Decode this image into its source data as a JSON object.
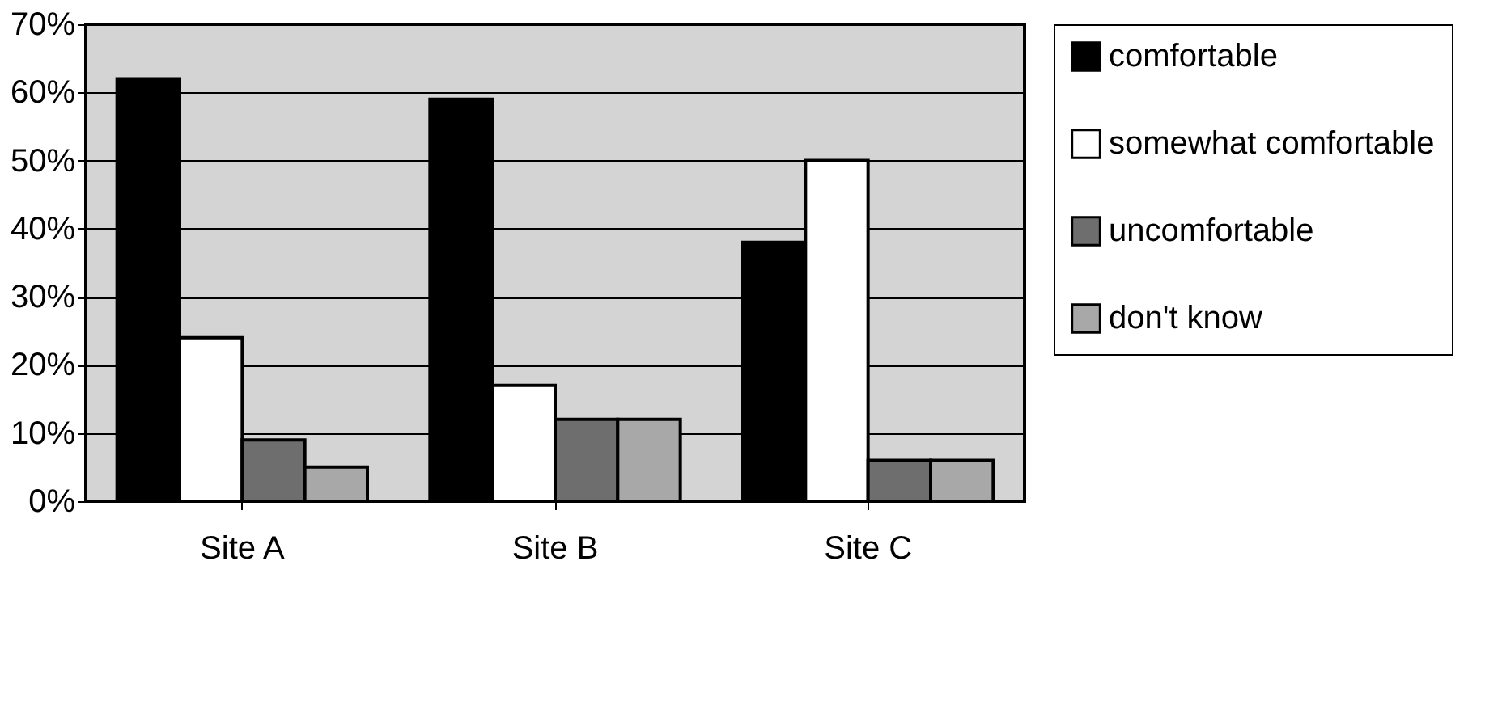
{
  "chart_data": {
    "type": "bar",
    "categories": [
      "Site A",
      "Site B",
      "Site C"
    ],
    "series": [
      {
        "name": "comfortable",
        "color": "#000000",
        "values": [
          62,
          59,
          38
        ]
      },
      {
        "name": "somewhat comfortable",
        "color": "#ffffff",
        "values": [
          24,
          17,
          50
        ]
      },
      {
        "name": "uncomfortable",
        "color": "#6e6e6e",
        "values": [
          9,
          12,
          6
        ]
      },
      {
        "name": "don't know",
        "color": "#a8a8a8",
        "values": [
          5,
          12,
          6
        ]
      }
    ],
    "ylim": [
      0,
      70
    ],
    "yticks": [
      {
        "value": 0,
        "label": "0%"
      },
      {
        "value": 10,
        "label": "10%"
      },
      {
        "value": 20,
        "label": "20%"
      },
      {
        "value": 30,
        "label": "30%"
      },
      {
        "value": 40,
        "label": "40%"
      },
      {
        "value": 50,
        "label": "50%"
      },
      {
        "value": 60,
        "label": "60%"
      },
      {
        "value": 70,
        "label": "70%"
      }
    ],
    "grid": "y",
    "legend": "right"
  }
}
